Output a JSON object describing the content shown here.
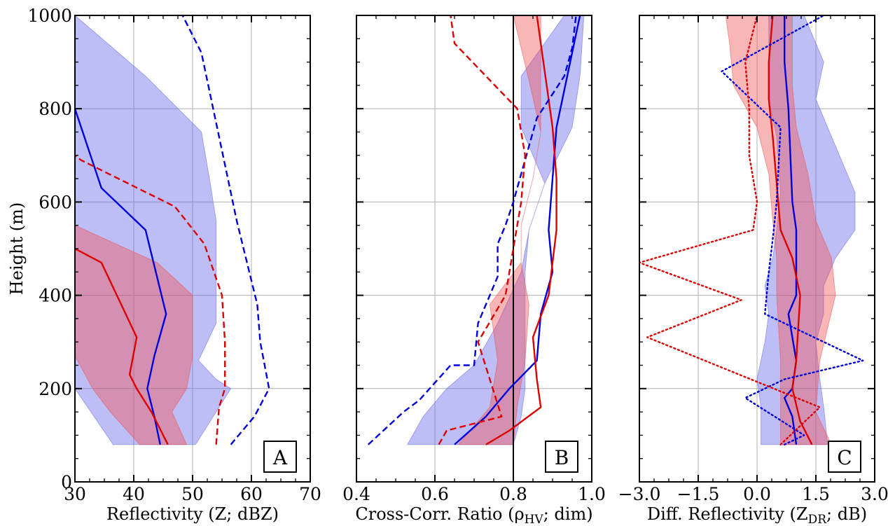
{
  "chart_data": [
    {
      "type": "line",
      "panel_label": "A",
      "ylabel": "Height (m)",
      "ylim": [
        0,
        1000
      ],
      "yticks": [
        0,
        200,
        400,
        600,
        800,
        1000
      ],
      "xlabel": "Reflectivity (Z; dBZ)",
      "xlim": [
        30,
        70
      ],
      "xticks": [
        "30",
        "40",
        "50",
        "60",
        "70"
      ],
      "grid": true,
      "bands": [
        {
          "color": "#0000dd",
          "y": [
            80,
            200,
            220,
            260,
            340,
            400,
            470,
            560,
            640,
            750,
            870,
            1000
          ],
          "left": [
            36.5,
            30,
            30,
            30,
            30,
            30,
            30,
            30,
            30,
            30,
            30,
            30
          ],
          "right": [
            50.5,
            56.5,
            54,
            51,
            54,
            54,
            54,
            54,
            53,
            51.5,
            42,
            30
          ]
        },
        {
          "color": "#ff6f6f",
          "y": [
            80,
            150,
            200,
            270,
            360,
            400,
            470,
            550
          ],
          "left": [
            41,
            36,
            33,
            30,
            30,
            30,
            30,
            30
          ],
          "right": [
            49,
            46.5,
            49,
            50,
            50,
            50,
            44,
            30
          ]
        }
      ],
      "series": [
        {
          "color": "#0000dd",
          "style": "solid",
          "x": [
            44.5,
            43.5,
            42.3,
            43.5,
            45.5,
            42,
            34.5,
            30
          ],
          "y": [
            80,
            140,
            200,
            270,
            360,
            540,
            630,
            800
          ]
        },
        {
          "color": "#dd0000",
          "style": "solid",
          "x": [
            45.8,
            43,
            40.5,
            39.3,
            40.5,
            34.5,
            30
          ],
          "y": [
            80,
            150,
            200,
            230,
            310,
            470,
            500
          ]
        },
        {
          "color": "#0000dd",
          "style": "dashed",
          "x": [
            56.5,
            60.5,
            63,
            61.5,
            61,
            57.5,
            53.5,
            51.5,
            48.3
          ],
          "y": [
            80,
            140,
            200,
            300,
            380,
            560,
            800,
            920,
            1000
          ]
        },
        {
          "color": "#dd0000",
          "style": "dashed",
          "x": [
            54,
            54.5,
            55.5,
            55.5,
            55,
            52,
            47,
            31,
            30
          ],
          "y": [
            80,
            160,
            200,
            300,
            400,
            510,
            590,
            690,
            700
          ]
        }
      ]
    },
    {
      "type": "line",
      "panel_label": "B",
      "ylim": [
        0,
        1000
      ],
      "xlabel": "Cross-Corr. Ratio (ρHV; dim)",
      "xlim": [
        0.4,
        1.0
      ],
      "xticks": [
        "0.4",
        "0.6",
        "0.8",
        "1.0"
      ],
      "grid": true,
      "reference_line_x": 0.8,
      "bands": [
        {
          "color": "#0000dd",
          "y": [
            80,
            140,
            200,
            250,
            340,
            450,
            540,
            640,
            760,
            870,
            1000
          ],
          "left": [
            0.53,
            0.57,
            0.63,
            0.7,
            0.76,
            0.82,
            0.84,
            0.88,
            0.82,
            0.82,
            0.93
          ],
          "right": [
            0.8,
            0.82,
            0.83,
            0.83,
            0.83,
            0.83,
            0.84,
            0.88,
            0.95,
            0.97,
            0.98
          ]
        },
        {
          "color": "#ff6f6f",
          "y": [
            80,
            160,
            260,
            380,
            470,
            550,
            650,
            750,
            860,
            1000
          ],
          "left": [
            0.66,
            0.74,
            0.76,
            0.74,
            0.82,
            0.82,
            0.85,
            0.87,
            0.84,
            0.8
          ],
          "right": [
            0.8,
            0.81,
            0.83,
            0.84,
            0.82,
            0.82,
            0.85,
            0.87,
            0.87,
            0.87
          ]
        }
      ],
      "series": [
        {
          "color": "#0000dd",
          "style": "solid",
          "x": [
            0.65,
            0.73,
            0.79,
            0.86,
            0.87,
            0.9,
            0.89,
            0.9,
            0.91,
            0.94,
            0.97
          ],
          "y": [
            80,
            140,
            200,
            260,
            360,
            450,
            540,
            650,
            760,
            880,
            1000
          ]
        },
        {
          "color": "#dd0000",
          "style": "solid",
          "x": [
            0.73,
            0.79,
            0.87,
            0.86,
            0.85,
            0.89,
            0.91,
            0.91,
            0.9,
            0.88,
            0.86
          ],
          "y": [
            80,
            110,
            160,
            220,
            310,
            400,
            540,
            650,
            760,
            880,
            1000
          ]
        },
        {
          "color": "#0000dd",
          "style": "dashed",
          "x": [
            0.43,
            0.52,
            0.56,
            0.64,
            0.7,
            0.71,
            0.76,
            0.76,
            0.78,
            0.8,
            0.86,
            0.93,
            0.95,
            0.96
          ],
          "y": [
            80,
            150,
            175,
            250,
            250,
            340,
            440,
            510,
            550,
            600,
            780,
            870,
            930,
            1000
          ]
        },
        {
          "color": "#dd0000",
          "style": "dashed",
          "x": [
            0.61,
            0.63,
            0.77,
            0.71,
            0.78,
            0.8,
            0.82,
            0.83,
            0.81,
            0.65,
            0.64
          ],
          "y": [
            80,
            110,
            140,
            300,
            400,
            500,
            600,
            700,
            800,
            940,
            1000
          ]
        }
      ]
    },
    {
      "type": "line",
      "panel_label": "C",
      "ylim": [
        0,
        1000
      ],
      "xlabel": "Diff. Reflectivity (ZDR; dB)",
      "xlim": [
        -3.0,
        3.0
      ],
      "xticks": [
        "−3.0",
        "−1.5",
        "0.0",
        "1.5",
        "3.0"
      ],
      "grid": true,
      "bands": [
        {
          "color": "#0000dd",
          "y": [
            80,
            160,
            220,
            300,
            360,
            420,
            480,
            540,
            620,
            740,
            820,
            900,
            1000
          ],
          "left": [
            0.1,
            0.1,
            0.0,
            0.2,
            0.3,
            0.2,
            0.4,
            0.5,
            0.6,
            0.5,
            0.3,
            0.3,
            0.3
          ],
          "right": [
            1.8,
            1.7,
            1.6,
            1.5,
            1.7,
            1.7,
            2.0,
            2.5,
            2.5,
            1.9,
            1.5,
            1.7,
            1.2
          ]
        },
        {
          "color": "#ff6f6f",
          "y": [
            80,
            150,
            260,
            400,
            480,
            560,
            660,
            760,
            850,
            940,
            1000
          ],
          "left": [
            0.6,
            0.6,
            0.6,
            0.5,
            0.5,
            0.4,
            0.3,
            0.0,
            -0.6,
            -0.7,
            -0.8
          ],
          "right": [
            1.9,
            1.5,
            1.6,
            2.0,
            1.9,
            1.5,
            1.3,
            1.0,
            0.9,
            0.9,
            0.9
          ]
        }
      ],
      "series": [
        {
          "color": "#0000dd",
          "style": "solid",
          "x": [
            1.0,
            0.9,
            0.7,
            0.9,
            1.0,
            0.8,
            1.0,
            1.0,
            0.9,
            0.8,
            0.7,
            0.7
          ],
          "y": [
            80,
            140,
            180,
            200,
            260,
            360,
            400,
            540,
            600,
            800,
            900,
            1000
          ]
        },
        {
          "color": "#dd0000",
          "style": "solid",
          "x": [
            1.4,
            1.1,
            0.9,
            1.0,
            1.1,
            0.9,
            0.6,
            0.5,
            0.4,
            0.3,
            0.3,
            0.4
          ],
          "y": [
            80,
            130,
            200,
            260,
            400,
            480,
            540,
            640,
            740,
            820,
            900,
            1000
          ]
        },
        {
          "color": "#0000dd",
          "style": "dotted",
          "x": [
            0.7,
            1.2,
            -0.3,
            0.7,
            2.7,
            0.2,
            0.3,
            0.4,
            0.5,
            0.6,
            -0.9,
            1.7
          ],
          "y": [
            80,
            100,
            180,
            220,
            260,
            360,
            450,
            520,
            600,
            760,
            880,
            1000
          ]
        },
        {
          "color": "#dd0000",
          "style": "dotted",
          "x": [
            0.6,
            1.6,
            -2.8,
            -0.4,
            -3.0,
            -0.1,
            0.0,
            -0.2,
            -0.2,
            -0.3,
            0.0
          ],
          "y": [
            80,
            160,
            310,
            390,
            470,
            540,
            600,
            700,
            800,
            900,
            1000
          ]
        }
      ]
    }
  ]
}
